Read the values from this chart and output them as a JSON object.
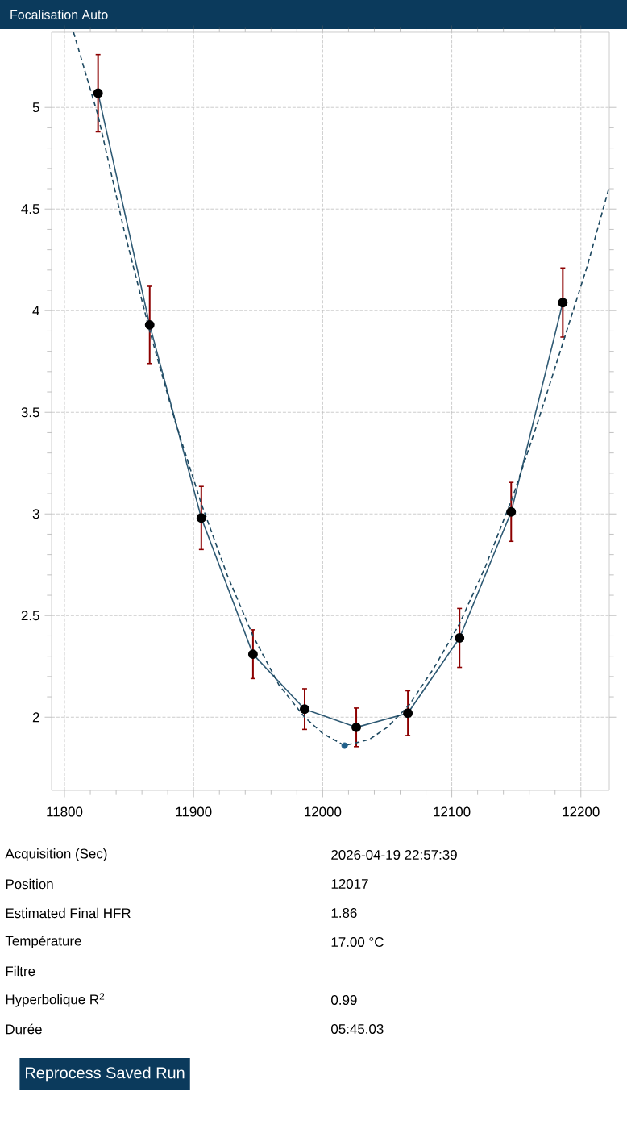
{
  "chart_data": {
    "type": "line",
    "title": "Focalisation Auto",
    "x": [
      11826,
      11866,
      11906,
      11946,
      11986,
      12026,
      12066,
      12106,
      12146,
      12186
    ],
    "series": [
      {
        "color": "#2f5a74",
        "marker": "circle",
        "line_style": "solid",
        "values": [
          5.07,
          3.93,
          2.98,
          2.31,
          2.04,
          1.95,
          2.02,
          2.39,
          3.01,
          4.04
        ],
        "errors": [
          0.19,
          0.19,
          0.155,
          0.12,
          0.1,
          0.095,
          0.11,
          0.145,
          0.145,
          0.17
        ]
      },
      {
        "color": "#1d4860",
        "marker": "none",
        "line_style": "dashed",
        "x": [
          11807,
          11826,
          11846,
          11866,
          11886,
          11906,
          11926,
          11946,
          11966,
          11986,
          12000,
          12017,
          12036,
          12050,
          12067,
          12086,
          12106,
          12126,
          12147,
          12166,
          12187,
          12205,
          12222
        ],
        "values": [
          5.37,
          4.96,
          4.4,
          3.9,
          3.45,
          3.05,
          2.7,
          2.4,
          2.16,
          2.0,
          1.92,
          1.86,
          1.89,
          1.95,
          2.06,
          2.24,
          2.46,
          2.74,
          3.08,
          3.44,
          3.86,
          4.22,
          4.61
        ]
      },
      {
        "type": "scatter",
        "color": "#1f5f8a",
        "marker": "circle",
        "x": [
          12017
        ],
        "values": [
          1.86
        ]
      }
    ],
    "xlim": [
      11790,
      12222
    ],
    "ylim": [
      1.64,
      5.37
    ],
    "xticks": [
      11800,
      11900,
      12000,
      12100,
      12200
    ],
    "yticks": [
      2,
      2.5,
      3,
      3.5,
      4,
      4.5,
      5
    ],
    "grid": true,
    "annotations": [
      "Acquisition (Sec)",
      "2026-04-19 22:57:39",
      "Position",
      "12017",
      "Estimated Final HFR",
      "1.86",
      "Température",
      "17.00 °C",
      "Filtre",
      "Hyperbolique R$^{2}$",
      "0.99",
      "Durée",
      "05:45.03",
      "Reprocess Saved Run"
    ]
  }
}
